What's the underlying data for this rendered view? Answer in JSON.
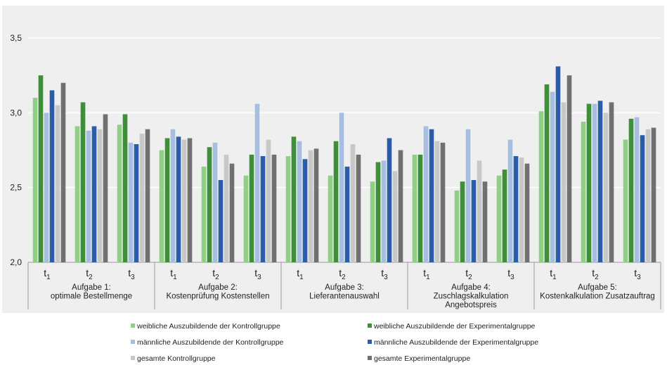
{
  "chart_data": {
    "type": "bar",
    "ylim": [
      2.0,
      3.5
    ],
    "yticks": [
      "2,0",
      "2,5",
      "3,0",
      "3,5"
    ],
    "grid": true,
    "legend_position": "bottom",
    "groups": [
      {
        "label_lines": [
          "Aufgabe 1:",
          "optimale Bestellmenge"
        ],
        "times": [
          "t1",
          "t2",
          "t3"
        ]
      },
      {
        "label_lines": [
          "Aufgabe 2:",
          "Kostenprüfung Kostenstellen"
        ],
        "times": [
          "t1",
          "t2",
          "t3"
        ]
      },
      {
        "label_lines": [
          "Aufgabe 3:",
          "Lieferantenauswahl"
        ],
        "times": [
          "t1",
          "t2",
          "t3"
        ]
      },
      {
        "label_lines": [
          "Aufgabe 4:",
          "Zuschlagskalkulation",
          "Angebotspreis"
        ],
        "times": [
          "t1",
          "t2",
          "t3"
        ]
      },
      {
        "label_lines": [
          "Aufgabe 5:",
          "Kostenkalkulation Zusatzauftrag"
        ],
        "times": [
          "t1",
          "t2",
          "t3"
        ]
      }
    ],
    "time_label_main": "t",
    "time_label_subs": [
      "1",
      "2",
      "3"
    ],
    "series": [
      {
        "name": "weibliche Auszubildende der Kontrollgruppe",
        "color": "#8fcf86",
        "values": [
          3.1,
          2.91,
          2.92,
          2.75,
          2.64,
          2.58,
          2.71,
          2.58,
          2.54,
          2.72,
          2.48,
          2.58,
          3.01,
          2.94,
          2.82
        ]
      },
      {
        "name": "weibliche Auszubildende der Experimentalgruppe",
        "color": "#3e8e3a",
        "values": [
          3.25,
          3.07,
          2.99,
          2.83,
          2.77,
          2.72,
          2.84,
          2.81,
          2.67,
          2.72,
          2.54,
          2.62,
          3.19,
          3.06,
          2.96
        ]
      },
      {
        "name": "männliche Auszubildende der Kontrollgruppe",
        "color": "#a6bfe0",
        "values": [
          3.0,
          2.88,
          2.8,
          2.89,
          2.8,
          3.06,
          2.81,
          3.0,
          2.68,
          2.91,
          2.89,
          2.82,
          3.14,
          3.06,
          2.97
        ]
      },
      {
        "name": "männliche Auszubildende der Experimentalgruppe",
        "color": "#2b5ca8",
        "values": [
          3.15,
          2.91,
          2.79,
          2.84,
          2.55,
          2.71,
          2.69,
          2.64,
          2.83,
          2.89,
          2.55,
          2.71,
          3.31,
          3.08,
          2.85
        ]
      },
      {
        "name": "gesamte Kontrollgruppe",
        "color": "#c8c8c8",
        "values": [
          3.05,
          2.89,
          2.86,
          2.82,
          2.72,
          2.82,
          2.75,
          2.79,
          2.61,
          2.81,
          2.68,
          2.7,
          3.07,
          3.0,
          2.89
        ]
      },
      {
        "name": "gesamte Experimentalgruppe",
        "color": "#707070",
        "values": [
          3.2,
          2.99,
          2.89,
          2.83,
          2.66,
          2.72,
          2.76,
          2.72,
          2.75,
          2.8,
          2.54,
          2.66,
          3.25,
          3.07,
          2.9
        ]
      }
    ]
  }
}
